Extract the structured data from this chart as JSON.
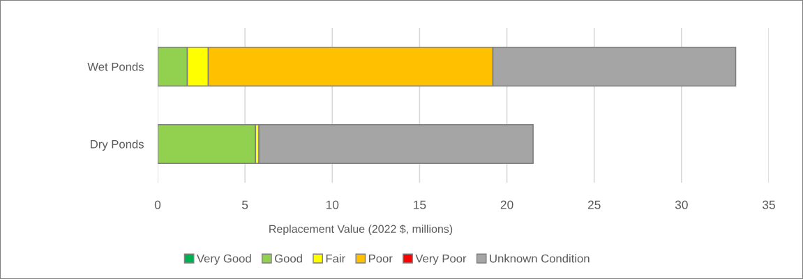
{
  "chart_data": {
    "type": "bar",
    "orientation": "horizontal",
    "stacked": true,
    "categories": [
      "Wet Ponds",
      "Dry Ponds"
    ],
    "xlabel": "Replacement Value (2022 $, millions)",
    "xlim": [
      0,
      35
    ],
    "xticks": [
      0,
      5,
      10,
      15,
      20,
      25,
      30,
      35
    ],
    "grid": "x",
    "legend": "bottom",
    "series": [
      {
        "name": "Very Good",
        "color": "#00b050",
        "values": [
          null,
          null
        ]
      },
      {
        "name": "Good",
        "color": "#92d050",
        "values": [
          1.7,
          5.6
        ]
      },
      {
        "name": "Fair",
        "color": "#ffff00",
        "values": [
          1.2,
          0.2
        ]
      },
      {
        "name": "Poor",
        "color": "#ffc000",
        "values": [
          16.3,
          null
        ]
      },
      {
        "name": "Very Poor",
        "color": "#ff0000",
        "values": [
          null,
          null
        ]
      },
      {
        "name": "Unknown Condition",
        "color": "#a5a5a5",
        "values": [
          13.9,
          15.7
        ]
      }
    ]
  }
}
